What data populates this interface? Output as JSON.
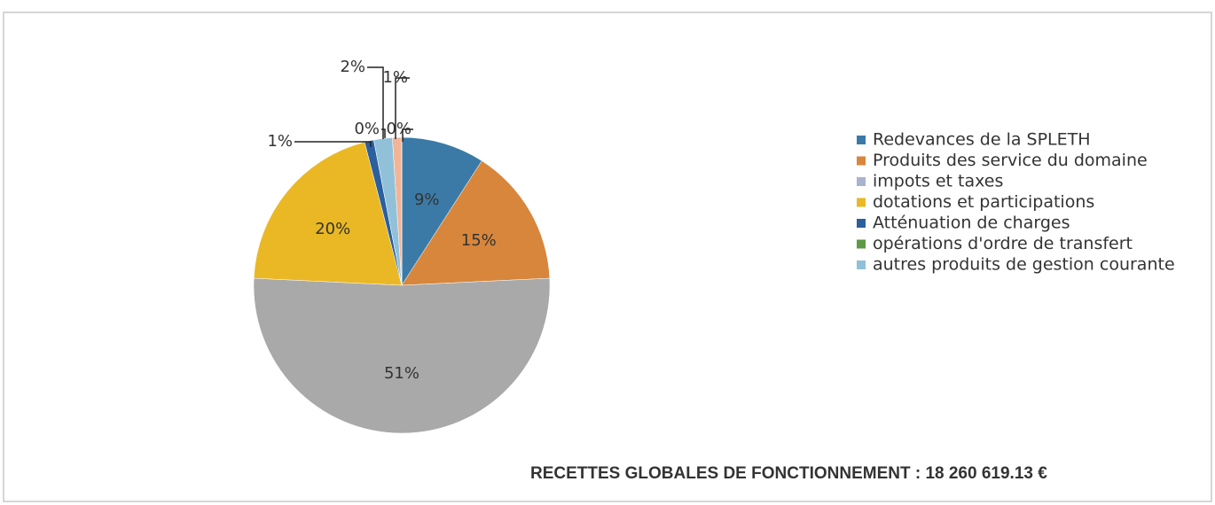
{
  "chart_data": {
    "type": "pie",
    "categories": [
      "Redevances de la SPLETH",
      "Produits des service du domaine",
      "impots et taxes",
      "dotations et participations",
      "Atténuation de charges",
      "opérations d'ordre de transfert",
      "autres produits de gestion courante",
      null,
      null
    ],
    "values": [
      9,
      15,
      51,
      20,
      1,
      0,
      2,
      1,
      0
    ],
    "value_labels": [
      "9%",
      "15%",
      "51%",
      "20%",
      "1%",
      "0%",
      "2%",
      "1%",
      "0%"
    ],
    "colors": [
      "#3b7aa6",
      "#d7863c",
      "#a9a9a9",
      "#e9b824",
      "#2b5f9e",
      "#5d9a45",
      "#90c1d9",
      "#f2b497",
      "#e3a2a2"
    ],
    "legend_colors": [
      "#3b7aa6",
      "#d7863c",
      "#a9b3cc",
      "#e9b824",
      "#2b5f9e",
      "#5d9a45",
      "#90c1d9"
    ],
    "annotation": "RECETTES  GLOBALES DE FONCTIONNEMENT :  18 260 619.13 €"
  }
}
